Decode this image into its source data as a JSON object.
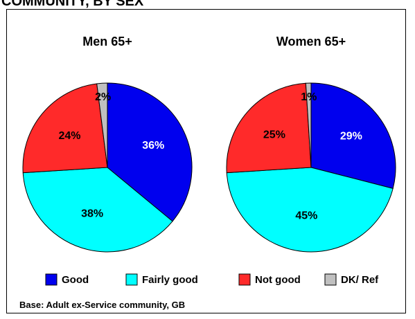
{
  "header": {
    "title": "COMMUNITY, BY SEX"
  },
  "footer": {
    "base_note": "Base: Adult ex-Service community, GB"
  },
  "colors": {
    "Good": "#0000ee",
    "Fairly good": "#00ffff",
    "Not good": "#ff2a2a",
    "DK/ Ref": "#c0c0c0"
  },
  "chart_data": {
    "type": "pie",
    "categories": [
      "Good",
      "Fairly good",
      "Not good",
      "DK/ Ref"
    ],
    "legend": {
      "position": "bottom",
      "labels": [
        "Good",
        "Fairly good",
        "Not good",
        "DK/ Ref"
      ]
    },
    "pies": [
      {
        "title": "Men 65+",
        "values": [
          36,
          38,
          24,
          2
        ],
        "labels": [
          "36%",
          "38%",
          "24%",
          "2%"
        ]
      },
      {
        "title": "Women 65+",
        "values": [
          29,
          45,
          25,
          1
        ],
        "labels": [
          "29%",
          "45%",
          "25%",
          "1%"
        ]
      }
    ]
  }
}
